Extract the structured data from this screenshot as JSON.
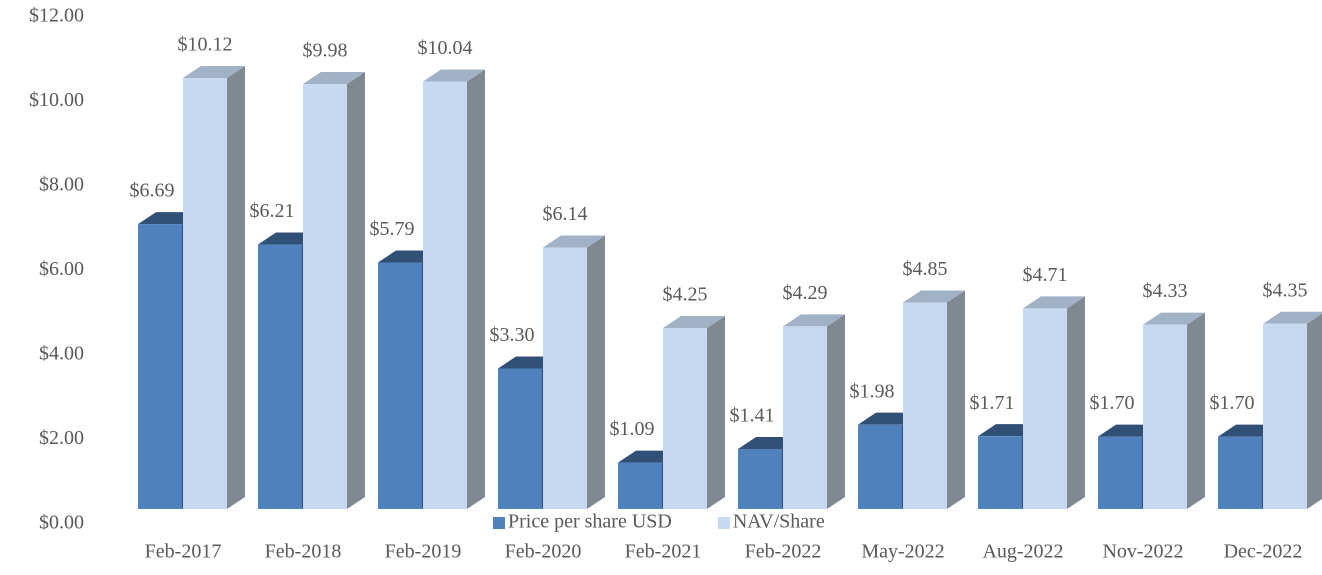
{
  "chart_data": {
    "type": "bar3d",
    "categories": [
      "Feb-2017",
      "Feb-2018",
      "Feb-2019",
      "Feb-2020",
      "Feb-2021",
      "Feb-2022",
      "May-2022",
      "Aug-2022",
      "Nov-2022",
      "Dec-2022"
    ],
    "series": [
      {
        "name": "Price per share USD",
        "color": "#4f81bd",
        "values": [
          6.69,
          6.21,
          5.79,
          3.3,
          1.09,
          1.41,
          1.98,
          1.71,
          1.7,
          1.7
        ],
        "value_labels": [
          "$6.69",
          "$6.21",
          "$5.79",
          "$3.30",
          "$1.09",
          "$1.41",
          "$1.98",
          "$1.71",
          "$1.70",
          "$1.70"
        ]
      },
      {
        "name": "NAV/Share",
        "color": "#c6d9f1",
        "values": [
          10.12,
          9.98,
          10.04,
          6.14,
          4.25,
          4.29,
          4.85,
          4.71,
          4.33,
          4.35
        ],
        "value_labels": [
          "$10.12",
          "$9.98",
          "$10.04",
          "$6.14",
          "$4.25",
          "$4.29",
          "$4.85",
          "$4.71",
          "$4.33",
          "$4.35"
        ]
      }
    ],
    "ylim": [
      0,
      12
    ],
    "yticks": [
      {
        "value": 0,
        "label": "$0.00"
      },
      {
        "value": 2,
        "label": "$2.00"
      },
      {
        "value": 4,
        "label": "$4.00"
      },
      {
        "value": 6,
        "label": "$6.00"
      },
      {
        "value": 8,
        "label": "$8.00"
      },
      {
        "value": 10,
        "label": "$10.00"
      },
      {
        "value": 12,
        "label": "$12.00"
      }
    ],
    "legend": "bottom"
  }
}
